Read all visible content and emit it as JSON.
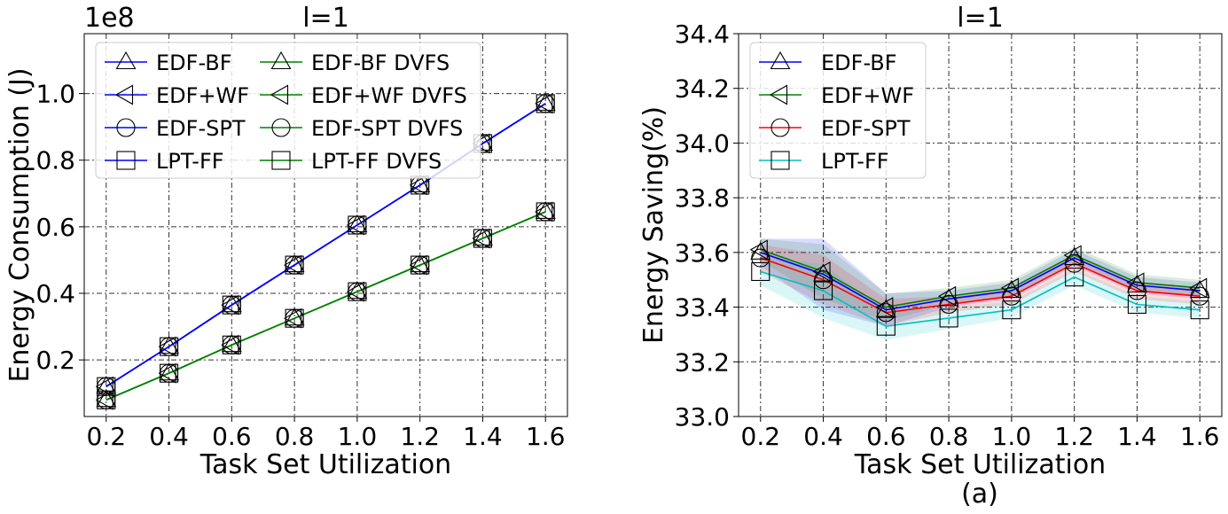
{
  "figure_label": "(a)",
  "chart_data": [
    {
      "type": "line",
      "title": "l=1",
      "xlabel": "Task Set Utilization",
      "ylabel": "Energy Consumption (J)",
      "y_offset_label": "1e8",
      "x": [
        0.2,
        0.4,
        0.6,
        0.8,
        1.0,
        1.2,
        1.4,
        1.6
      ],
      "xticks": [
        "0.2",
        "0.4",
        "0.6",
        "0.8",
        "1.0",
        "1.2",
        "1.4",
        "1.6"
      ],
      "yticks": [
        "0.2",
        "0.4",
        "0.6",
        "0.8",
        "1.0"
      ],
      "xlim": [
        0.13,
        1.67
      ],
      "ylim": [
        0.03,
        1.18
      ],
      "grid": true,
      "legend_placement": "top-left, 2 columns",
      "series": [
        {
          "name": "EDF-BF",
          "color": "#0000ff",
          "marker": "triangle-up",
          "values": [
            0.12,
            0.24,
            0.365,
            0.485,
            0.605,
            0.725,
            0.85,
            0.97
          ]
        },
        {
          "name": "EDF+WF",
          "color": "#0000ff",
          "marker": "triangle-left",
          "values": [
            0.12,
            0.24,
            0.365,
            0.485,
            0.605,
            0.725,
            0.85,
            0.97
          ]
        },
        {
          "name": "EDF-SPT",
          "color": "#0000ff",
          "marker": "circle",
          "values": [
            0.12,
            0.24,
            0.365,
            0.485,
            0.605,
            0.725,
            0.85,
            0.97
          ]
        },
        {
          "name": "LPT-FF",
          "color": "#0000ff",
          "marker": "square",
          "values": [
            0.12,
            0.24,
            0.365,
            0.485,
            0.605,
            0.725,
            0.85,
            0.97
          ]
        },
        {
          "name": "EDF-BF DVFS",
          "color": "#008000",
          "marker": "triangle-up",
          "values": [
            0.08,
            0.16,
            0.245,
            0.325,
            0.405,
            0.485,
            0.565,
            0.645
          ]
        },
        {
          "name": "EDF+WF DVFS",
          "color": "#008000",
          "marker": "triangle-left",
          "values": [
            0.08,
            0.16,
            0.245,
            0.325,
            0.405,
            0.485,
            0.565,
            0.645
          ]
        },
        {
          "name": "EDF-SPT DVFS",
          "color": "#008000",
          "marker": "circle",
          "values": [
            0.08,
            0.16,
            0.245,
            0.325,
            0.405,
            0.485,
            0.565,
            0.645
          ]
        },
        {
          "name": "LPT-FF DVFS",
          "color": "#008000",
          "marker": "square",
          "values": [
            0.08,
            0.16,
            0.245,
            0.325,
            0.405,
            0.485,
            0.565,
            0.645
          ]
        }
      ]
    },
    {
      "type": "line",
      "title": "l=1",
      "xlabel": "Task Set Utilization",
      "ylabel": "Energy Saving(%)",
      "x": [
        0.2,
        0.4,
        0.6,
        0.8,
        1.0,
        1.2,
        1.4,
        1.6
      ],
      "xticks": [
        "0.2",
        "0.4",
        "0.6",
        "0.8",
        "1.0",
        "1.2",
        "1.4",
        "1.6"
      ],
      "yticks": [
        "33.0",
        "33.2",
        "33.4",
        "33.6",
        "33.8",
        "34.0",
        "34.2",
        "34.4"
      ],
      "xlim": [
        0.13,
        1.67
      ],
      "ylim": [
        33.0,
        34.4
      ],
      "grid": true,
      "legend_placement": "top-left",
      "series": [
        {
          "name": "EDF-BF",
          "color": "#0000ff",
          "marker": "triangle-up",
          "values": [
            33.6,
            33.52,
            33.39,
            33.43,
            33.46,
            33.58,
            33.48,
            33.46
          ],
          "band": [
            0.05,
            0.13,
            0.06,
            0.03,
            0.03,
            0.03,
            0.03,
            0.03
          ]
        },
        {
          "name": "EDF+WF",
          "color": "#008000",
          "marker": "triangle-left",
          "values": [
            33.61,
            33.53,
            33.4,
            33.44,
            33.47,
            33.59,
            33.49,
            33.47
          ],
          "band": [
            0.04,
            0.1,
            0.05,
            0.03,
            0.03,
            0.03,
            0.03,
            0.03
          ]
        },
        {
          "name": "EDF-SPT",
          "color": "#ff0000",
          "marker": "circle",
          "values": [
            33.58,
            33.5,
            33.38,
            33.41,
            33.44,
            33.56,
            33.46,
            33.44
          ],
          "band": [
            0.05,
            0.09,
            0.05,
            0.03,
            0.03,
            0.03,
            0.03,
            0.03
          ]
        },
        {
          "name": "LPT-FF",
          "color": "#00bfbf",
          "marker": "square",
          "values": [
            33.53,
            33.46,
            33.33,
            33.36,
            33.39,
            33.51,
            33.41,
            33.39
          ],
          "band": [
            0.05,
            0.1,
            0.05,
            0.04,
            0.03,
            0.03,
            0.03,
            0.03
          ]
        }
      ]
    }
  ]
}
